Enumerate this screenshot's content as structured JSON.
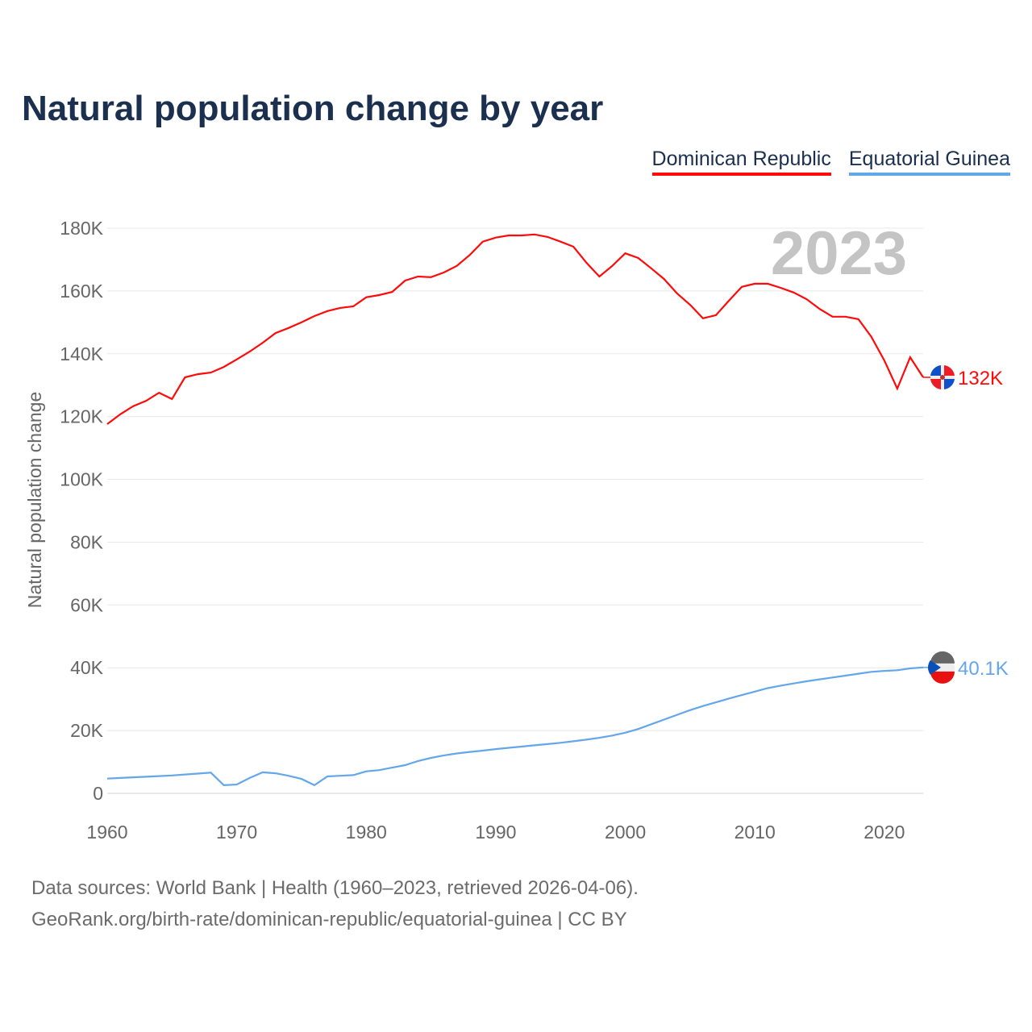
{
  "chart_data": {
    "type": "line",
    "title": "Natural population change by year",
    "ylabel": "Natural population change",
    "xlabel": "",
    "xlim": [
      1960,
      2023
    ],
    "ylim": [
      0,
      180000
    ],
    "x_ticks": [
      1960,
      1970,
      1980,
      1990,
      2000,
      2010,
      2020
    ],
    "x_tick_labels": [
      "1960",
      "1970",
      "1980",
      "1990",
      "2000",
      "2010",
      "2020"
    ],
    "y_ticks": [
      0,
      20000,
      40000,
      60000,
      80000,
      100000,
      120000,
      140000,
      160000,
      180000
    ],
    "y_tick_labels": [
      "0",
      "20K",
      "40K",
      "60K",
      "80K",
      "100K",
      "120K",
      "140K",
      "160K",
      "180K"
    ],
    "grid": true,
    "legend_position": "top-right",
    "year_watermark": "2023",
    "x": [
      1960,
      1961,
      1962,
      1963,
      1964,
      1965,
      1966,
      1967,
      1968,
      1969,
      1970,
      1971,
      1972,
      1973,
      1974,
      1975,
      1976,
      1977,
      1978,
      1979,
      1980,
      1981,
      1982,
      1983,
      1984,
      1985,
      1986,
      1987,
      1988,
      1989,
      1990,
      1991,
      1992,
      1993,
      1994,
      1995,
      1996,
      1997,
      1998,
      1999,
      2000,
      2001,
      2002,
      2003,
      2004,
      2005,
      2006,
      2007,
      2008,
      2009,
      2010,
      2011,
      2012,
      2013,
      2014,
      2015,
      2016,
      2017,
      2018,
      2019,
      2020,
      2021,
      2022,
      2023
    ],
    "series": [
      {
        "name": "Dominican Republic",
        "color": "#ff0a0a",
        "end_label": "132K",
        "values": [
          117600,
          120700,
          123300,
          125000,
          127600,
          125600,
          132500,
          133500,
          134000,
          135800,
          138200,
          140700,
          143500,
          146600,
          148200,
          150000,
          152000,
          153600,
          154600,
          155100,
          158000,
          158700,
          159700,
          163300,
          164600,
          164400,
          165900,
          168000,
          171500,
          175700,
          177000,
          177700,
          177700,
          178000,
          177200,
          175700,
          174100,
          169000,
          164600,
          168000,
          172000,
          170500,
          167200,
          163800,
          159200,
          155600,
          151300,
          152300,
          156900,
          161300,
          162300,
          162300,
          161000,
          159500,
          157400,
          154300,
          151800,
          151800,
          151000,
          145400,
          137900,
          128900,
          138900,
          132500
        ]
      },
      {
        "name": "Equatorial Guinea",
        "color": "#64a6ea",
        "end_label": "40.1K",
        "values": [
          4700,
          4900,
          5100,
          5300,
          5500,
          5700,
          6000,
          6300,
          6600,
          2600,
          2800,
          4900,
          6700,
          6400,
          5600,
          4600,
          2600,
          5400,
          5600,
          5800,
          7000,
          7400,
          8200,
          9000,
          10300,
          11300,
          12100,
          12700,
          13200,
          13600,
          14100,
          14500,
          14900,
          15300,
          15700,
          16100,
          16600,
          17100,
          17700,
          18400,
          19300,
          20500,
          22000,
          23500,
          25000,
          26500,
          27800,
          29000,
          30200,
          31300,
          32400,
          33500,
          34300,
          35000,
          35700,
          36300,
          36900,
          37500,
          38100,
          38700,
          39000,
          39200,
          39800,
          40100
        ]
      }
    ]
  },
  "footer": {
    "line1": "Data sources: World Bank | Health (1960–2023, retrieved 2026-04-06).",
    "line2": "GeoRank.org/birth-rate/dominican-republic/equatorial-guinea | CC BY"
  }
}
